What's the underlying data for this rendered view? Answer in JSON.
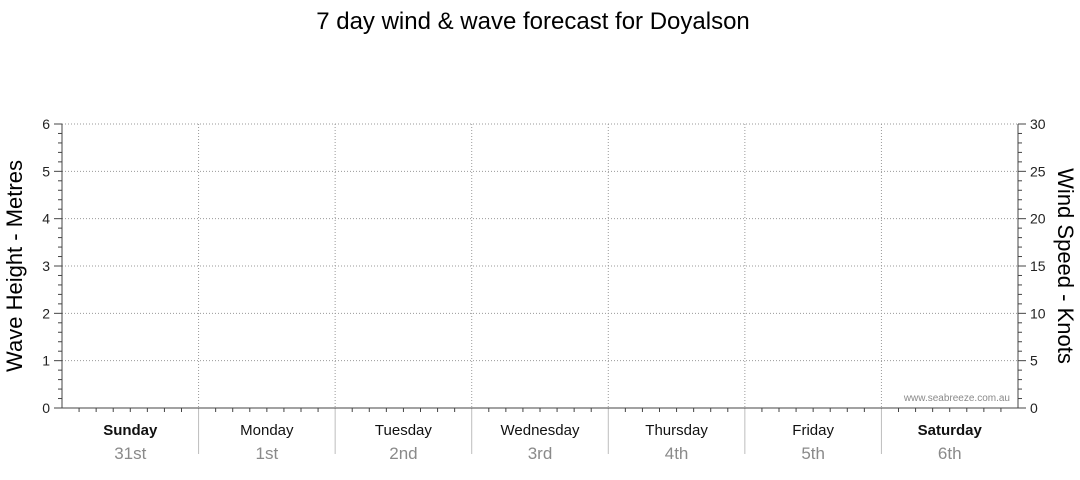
{
  "chart_data": {
    "type": "line",
    "title": "7 day wind & wave forecast for Doyalson",
    "ylabel_left": "Wave Height - Metres",
    "ylabel_right": "Wind Speed - Knots",
    "ylim_left": [
      0,
      6
    ],
    "ylim_right": [
      0,
      30
    ],
    "yticks_left": [
      "0",
      "1",
      "2",
      "3",
      "4",
      "5",
      "6"
    ],
    "yticks_right": [
      "0",
      "5",
      "10",
      "15",
      "20",
      "25",
      "30"
    ],
    "grid": true,
    "days": [
      {
        "name": "Sunday",
        "date": "31st",
        "bold": true
      },
      {
        "name": "Monday",
        "date": "1st",
        "bold": false
      },
      {
        "name": "Tuesday",
        "date": "2nd",
        "bold": false
      },
      {
        "name": "Wednesday",
        "date": "3rd",
        "bold": false
      },
      {
        "name": "Thursday",
        "date": "4th",
        "bold": false
      },
      {
        "name": "Friday",
        "date": "5th",
        "bold": false
      },
      {
        "name": "Saturday",
        "date": "6th",
        "bold": true
      }
    ],
    "series": [],
    "watermark": "www.seabreeze.com.au"
  }
}
